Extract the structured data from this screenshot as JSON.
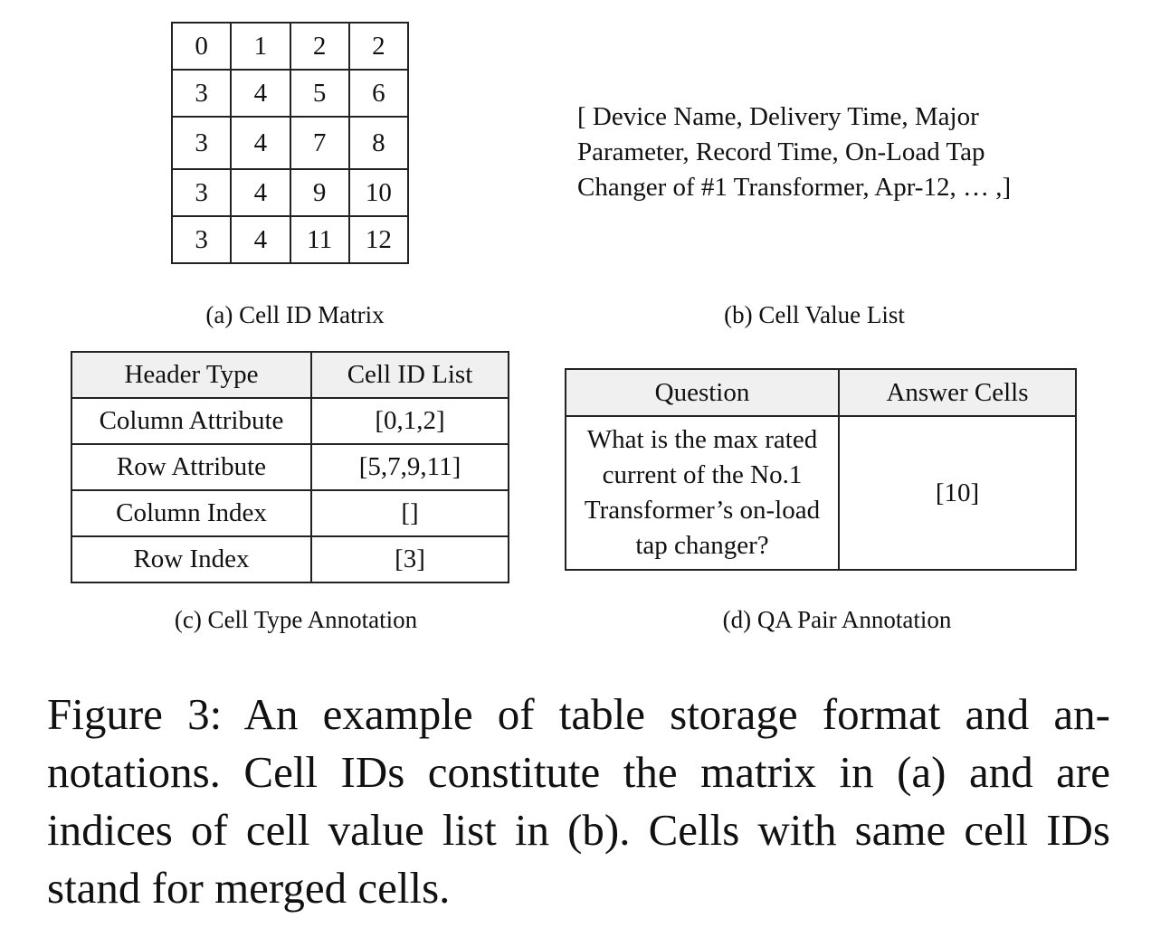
{
  "matrix": {
    "rows": [
      [
        "0",
        "1",
        "2",
        "2"
      ],
      [
        "3",
        "4",
        "5",
        "6"
      ],
      [
        "3",
        "4",
        "7",
        "8"
      ],
      [
        "3",
        "4",
        "9",
        "10"
      ],
      [
        "3",
        "4",
        "11",
        "12"
      ]
    ],
    "caption": "(a) Cell ID Matrix"
  },
  "value_list": {
    "lines": [
      "[ Device Name, Delivery Time, Major",
      "Parameter, Record Time, On-Load Tap",
      "Changer of #1 Transformer, Apr-12, … ,]"
    ],
    "caption": "(b) Cell Value List"
  },
  "type_table": {
    "headers": [
      "Header Type",
      "Cell ID List"
    ],
    "rows": [
      [
        "Column Attribute",
        "[0,1,2]"
      ],
      [
        "Row Attribute",
        "[5,7,9,11]"
      ],
      [
        "Column Index",
        "[]"
      ],
      [
        "Row Index",
        "[3]"
      ]
    ],
    "caption": "(c) Cell Type Annotation"
  },
  "qa_table": {
    "headers": [
      "Question",
      "Answer Cells"
    ],
    "question_lines": [
      "What is the max rated",
      "current of the No.1",
      "Transformer’s on-load",
      "tap changer?"
    ],
    "answer": "[10]",
    "caption": "(d) QA Pair Annotation"
  },
  "figure_caption": "Figure 3: An example of table storage format and an-notations. Cell IDs constitute the matrix in (a) and are indices of cell value list in (b). Cells with same cell IDs stand for merged cells."
}
